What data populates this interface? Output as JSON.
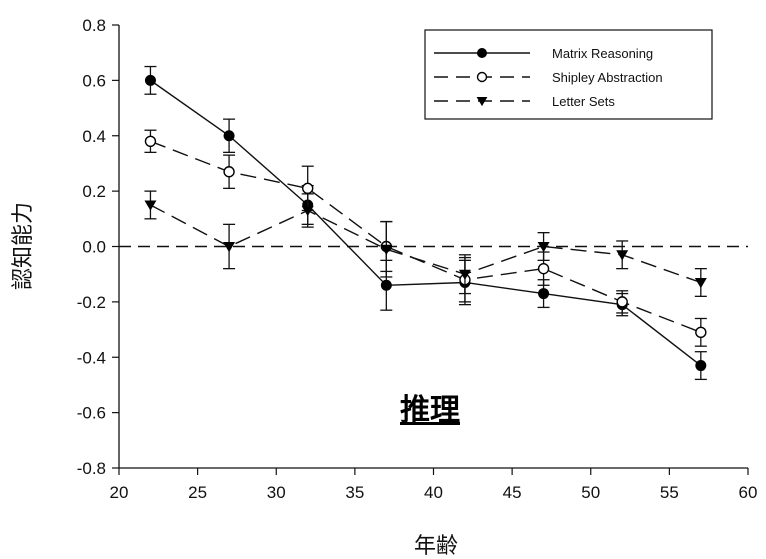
{
  "chart_data": {
    "type": "line",
    "title": "",
    "xlabel": "年齢",
    "ylabel": "認知能力",
    "annotation": "推理",
    "xlim": [
      20,
      60
    ],
    "ylim": [
      -0.8,
      0.8
    ],
    "x_ticks": [
      "20",
      "25",
      "30",
      "35",
      "40",
      "45",
      "50",
      "55",
      "60"
    ],
    "y_ticks": [
      "0.8",
      "0.6",
      "0.4",
      "0.2",
      "0.0",
      "-0.2",
      "-0.4",
      "-0.6",
      "-0.8"
    ],
    "reference_line": 0.0,
    "legend_position": "top-right",
    "x": [
      22,
      27,
      32,
      37,
      42,
      47,
      52,
      57
    ],
    "series": [
      {
        "name": "Matrix Reasoning",
        "marker": "filled-circle",
        "line": "solid",
        "values": [
          0.6,
          0.4,
          0.15,
          -0.14,
          -0.13,
          -0.17,
          -0.21,
          -0.43
        ],
        "errors": [
          0.05,
          0.06,
          0.07,
          0.09,
          0.08,
          0.05,
          0.04,
          0.05
        ]
      },
      {
        "name": "Shipley Abstraction",
        "marker": "open-circle",
        "line": "long-dash",
        "values": [
          0.38,
          0.27,
          0.21,
          0.0,
          -0.12,
          -0.08,
          -0.2,
          -0.31
        ],
        "errors": [
          0.04,
          0.06,
          0.08,
          0.09,
          0.08,
          0.06,
          0.04,
          0.05
        ]
      },
      {
        "name": "Letter Sets",
        "marker": "filled-triangle-down",
        "line": "long-dash",
        "values": [
          0.15,
          0.0,
          0.13,
          -0.01,
          -0.1,
          0.0,
          -0.03,
          -0.13
        ],
        "errors": [
          0.05,
          0.08,
          0.06,
          0.1,
          0.07,
          0.05,
          0.05,
          0.05
        ]
      }
    ]
  }
}
